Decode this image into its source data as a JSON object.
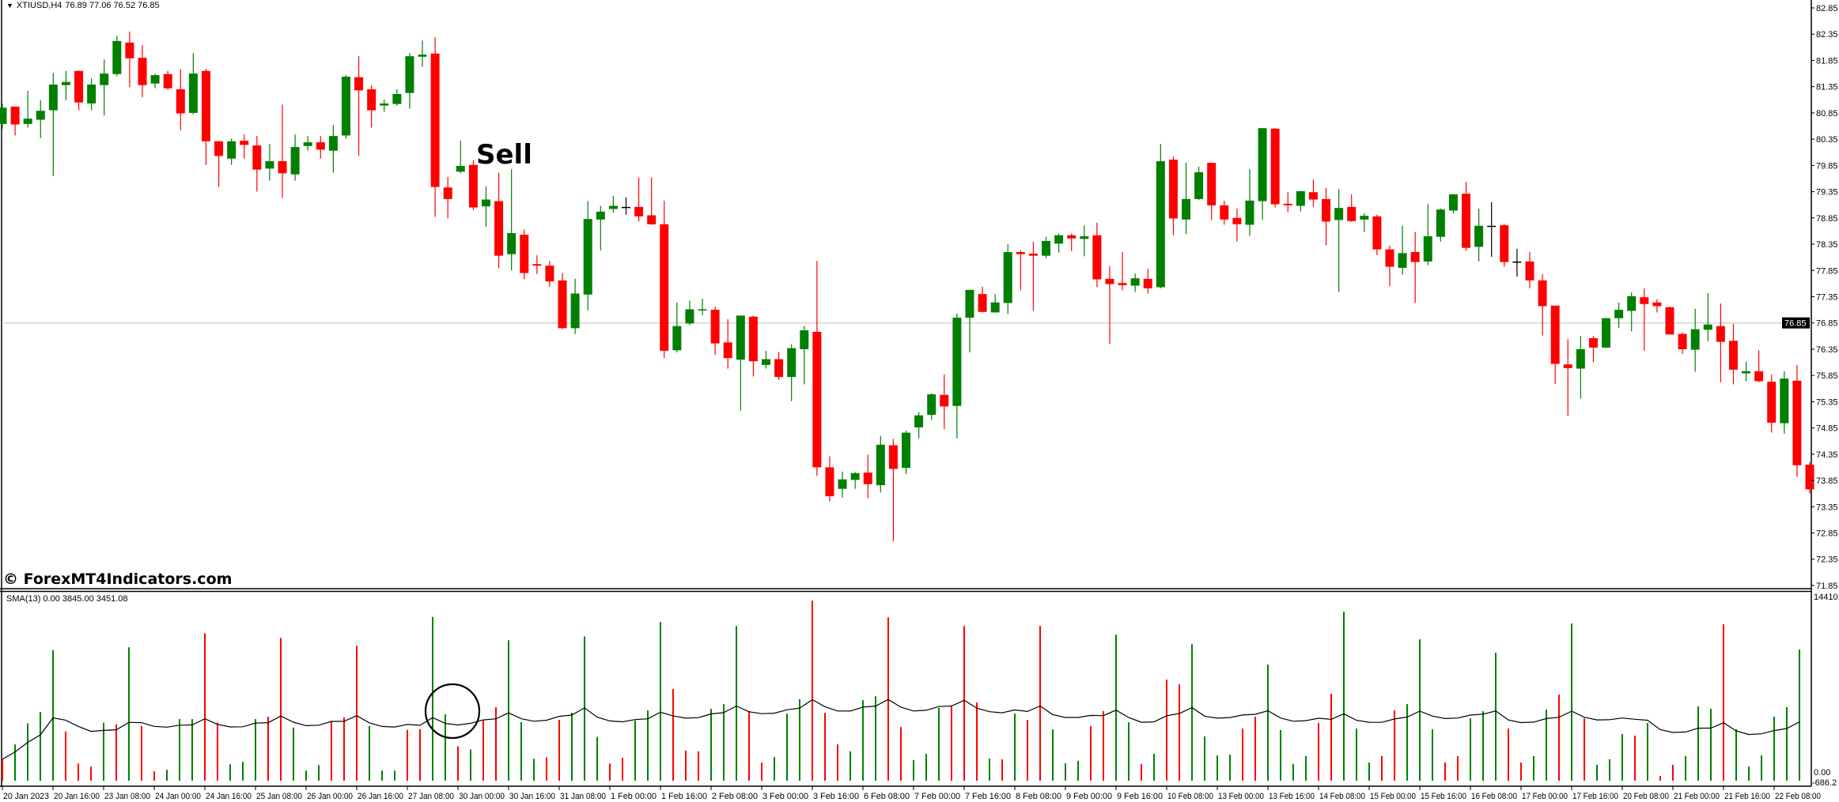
{
  "header": {
    "dropdown_icon": "triangle-down-icon",
    "symbol_timeframe": "XTIUSD,H4",
    "ohlc_text": "76.89 77.06 76.52 76.85"
  },
  "watermark": "© ForexMT4Indicators.com",
  "annotations": {
    "sell_label": "Sell",
    "circle_marker": "circle-highlight"
  },
  "indicator": {
    "label": "SMA(13) 0.00 3845.00 3451.08",
    "max_label": "14410.",
    "zero_label": "0.00",
    "min_label": "-686.2"
  },
  "colors": {
    "bull": "#008000",
    "bear": "#ff0000",
    "doji": "#000000",
    "bid_line": "#c0c0c0",
    "sma": "#000000"
  },
  "chart_data": [
    {
      "type": "candlestick",
      "symbol": "XTIUSD",
      "timeframe": "H4",
      "bid": 76.85,
      "bid_label": "76.85",
      "ylim": [
        71.85,
        82.85
      ],
      "y_tick_labels": [
        "82.85",
        "82.35",
        "81.85",
        "81.35",
        "80.85",
        "80.35",
        "79.85",
        "79.35",
        "78.85",
        "78.35",
        "77.85",
        "77.35",
        "76.85",
        "76.35",
        "75.85",
        "75.35",
        "74.85",
        "74.35",
        "73.85",
        "73.35",
        "72.85",
        "72.35",
        "71.85"
      ],
      "x_tick_labels": [
        "20 Jan 2023",
        "20 Jan 16:00",
        "23 Jan 08:00",
        "24 Jan 00:00",
        "24 Jan 16:00",
        "25 Jan 08:00",
        "26 Jan 00:00",
        "26 Jan 16:00",
        "27 Jan 08:00",
        "30 Jan 00:00",
        "30 Jan 16:00",
        "31 Jan 08:00",
        "1 Feb 00:00",
        "1 Feb 16:00",
        "2 Feb 08:00",
        "3 Feb 00:00",
        "3 Feb 16:00",
        "6 Feb 08:00",
        "7 Feb 00:00",
        "7 Feb 16:00",
        "8 Feb 08:00",
        "9 Feb 00:00",
        "9 Feb 16:00",
        "10 Feb 08:00",
        "13 Feb 00:00",
        "13 Feb 16:00",
        "14 Feb 08:00",
        "15 Feb 00:00",
        "15 Feb 16:00",
        "16 Feb 08:00",
        "17 Feb 00:00",
        "17 Feb 16:00",
        "20 Feb 08:00",
        "21 Feb 00:00",
        "21 Feb 16:00",
        "22 Feb 08:00"
      ],
      "ohlc": [
        [
          80.64,
          81.03,
          80.55,
          80.95
        ],
        [
          80.97,
          80.97,
          80.42,
          80.63
        ],
        [
          80.64,
          81.27,
          80.57,
          80.74
        ],
        [
          80.72,
          81.09,
          80.37,
          80.89
        ],
        [
          80.9,
          81.61,
          79.65,
          81.39
        ],
        [
          81.38,
          81.65,
          81.09,
          81.44
        ],
        [
          81.65,
          81.66,
          80.9,
          81.05
        ],
        [
          81.03,
          81.51,
          80.9,
          81.39
        ],
        [
          81.38,
          81.87,
          80.8,
          81.6
        ],
        [
          81.59,
          82.32,
          81.55,
          82.22
        ],
        [
          82.19,
          82.4,
          81.34,
          81.89
        ],
        [
          81.9,
          82.14,
          81.15,
          81.38
        ],
        [
          81.41,
          81.6,
          81.32,
          81.57
        ],
        [
          81.59,
          81.65,
          81.29,
          81.32
        ],
        [
          81.3,
          81.68,
          80.52,
          80.84
        ],
        [
          80.85,
          81.99,
          80.82,
          81.6
        ],
        [
          81.65,
          81.69,
          79.86,
          80.31
        ],
        [
          80.31,
          80.31,
          79.44,
          80.03
        ],
        [
          79.98,
          80.36,
          79.86,
          80.31
        ],
        [
          80.32,
          80.44,
          79.98,
          80.24
        ],
        [
          80.23,
          80.41,
          79.35,
          79.77
        ],
        [
          79.79,
          80.26,
          79.56,
          79.93
        ],
        [
          79.93,
          81.01,
          79.23,
          79.7
        ],
        [
          79.68,
          80.44,
          79.56,
          80.2
        ],
        [
          80.22,
          80.41,
          80.13,
          80.29
        ],
        [
          80.29,
          80.41,
          79.98,
          80.15
        ],
        [
          80.13,
          80.62,
          79.71,
          80.41
        ],
        [
          80.42,
          81.57,
          80.36,
          81.54
        ],
        [
          81.53,
          81.93,
          80.03,
          81.28
        ],
        [
          81.3,
          81.38,
          80.57,
          80.9
        ],
        [
          80.99,
          81.1,
          80.87,
          81.03
        ],
        [
          81.02,
          81.3,
          80.99,
          81.21
        ],
        [
          81.23,
          81.99,
          80.93,
          81.93
        ],
        [
          81.92,
          82.23,
          81.73,
          81.96
        ],
        [
          81.98,
          82.29,
          78.87,
          79.44
        ],
        [
          79.43,
          79.63,
          78.84,
          79.21
        ],
        [
          79.73,
          80.32,
          79.7,
          79.84
        ],
        [
          79.86,
          79.95,
          79.0,
          79.05
        ],
        [
          79.07,
          79.45,
          78.68,
          79.2
        ],
        [
          79.17,
          79.71,
          77.89,
          78.13
        ],
        [
          78.16,
          79.78,
          77.85,
          78.56
        ],
        [
          78.53,
          78.63,
          77.68,
          77.8
        ],
        [
          77.97,
          78.14,
          77.78,
          77.94
        ],
        [
          77.94,
          78.03,
          77.54,
          77.64
        ],
        [
          77.66,
          77.8,
          76.73,
          76.75
        ],
        [
          76.75,
          77.69,
          76.64,
          77.41
        ],
        [
          77.39,
          79.17,
          77.09,
          78.83
        ],
        [
          78.82,
          79.08,
          78.23,
          78.97
        ],
        [
          79.02,
          79.27,
          78.95,
          79.08
        ],
        [
          79.06,
          79.24,
          78.91,
          79.06
        ],
        [
          79.06,
          79.62,
          78.78,
          78.88
        ],
        [
          78.9,
          79.62,
          78.72,
          78.73
        ],
        [
          78.73,
          79.18,
          76.18,
          76.32
        ],
        [
          76.33,
          77.24,
          76.29,
          76.79
        ],
        [
          76.84,
          77.27,
          76.81,
          77.11
        ],
        [
          77.09,
          77.31,
          77.0,
          77.11
        ],
        [
          77.1,
          77.16,
          76.24,
          76.46
        ],
        [
          76.48,
          76.92,
          75.98,
          76.18
        ],
        [
          76.15,
          76.99,
          75.18,
          76.99
        ],
        [
          76.97,
          76.99,
          75.83,
          76.12
        ],
        [
          76.05,
          76.32,
          75.98,
          76.16
        ],
        [
          76.16,
          76.3,
          75.76,
          75.82
        ],
        [
          75.82,
          76.44,
          75.36,
          76.37
        ],
        [
          76.35,
          76.79,
          75.68,
          76.71
        ],
        [
          76.68,
          78.03,
          73.94,
          74.1
        ],
        [
          74.1,
          74.31,
          73.45,
          73.55
        ],
        [
          73.69,
          74.02,
          73.52,
          73.87
        ],
        [
          73.86,
          74.01,
          73.69,
          73.99
        ],
        [
          74.0,
          74.34,
          73.51,
          73.78
        ],
        [
          73.76,
          74.7,
          73.62,
          74.53
        ],
        [
          74.52,
          74.64,
          72.69,
          74.07
        ],
        [
          74.09,
          74.8,
          73.97,
          74.76
        ],
        [
          74.86,
          75.15,
          74.65,
          75.09
        ],
        [
          75.1,
          75.51,
          75.0,
          75.49
        ],
        [
          75.48,
          75.87,
          74.83,
          75.26
        ],
        [
          75.27,
          77.03,
          74.65,
          76.95
        ],
        [
          76.95,
          77.48,
          76.29,
          77.48
        ],
        [
          77.4,
          77.54,
          77.05,
          77.06
        ],
        [
          77.05,
          77.4,
          77.05,
          77.24
        ],
        [
          77.23,
          78.35,
          77.02,
          78.2
        ],
        [
          78.2,
          78.23,
          77.47,
          78.16
        ],
        [
          78.17,
          78.4,
          77.08,
          78.13
        ],
        [
          78.13,
          78.49,
          78.08,
          78.41
        ],
        [
          78.36,
          78.55,
          78.19,
          78.52
        ],
        [
          78.52,
          78.55,
          78.22,
          78.46
        ],
        [
          78.45,
          78.71,
          78.12,
          78.5
        ],
        [
          78.52,
          78.76,
          77.53,
          77.68
        ],
        [
          77.69,
          77.93,
          76.45,
          77.59
        ],
        [
          77.61,
          78.2,
          77.47,
          77.57
        ],
        [
          77.56,
          77.79,
          77.44,
          77.7
        ],
        [
          77.69,
          77.88,
          77.41,
          77.51
        ],
        [
          77.53,
          80.26,
          77.51,
          79.93
        ],
        [
          79.96,
          80.02,
          78.52,
          78.84
        ],
        [
          78.82,
          79.9,
          78.54,
          79.21
        ],
        [
          79.21,
          79.83,
          79.19,
          79.72
        ],
        [
          79.9,
          79.9,
          78.81,
          79.09
        ],
        [
          79.09,
          79.18,
          78.72,
          78.82
        ],
        [
          78.85,
          79.03,
          78.4,
          78.73
        ],
        [
          78.72,
          79.78,
          78.51,
          79.18
        ],
        [
          79.17,
          80.56,
          78.81,
          80.56
        ],
        [
          80.55,
          80.56,
          79.05,
          79.11
        ],
        [
          79.12,
          79.34,
          78.96,
          79.09
        ],
        [
          79.08,
          79.36,
          78.97,
          79.36
        ],
        [
          79.34,
          79.58,
          79.06,
          79.2
        ],
        [
          79.21,
          79.42,
          78.33,
          78.78
        ],
        [
          78.81,
          79.4,
          77.44,
          79.04
        ],
        [
          79.06,
          79.3,
          78.78,
          78.79
        ],
        [
          78.82,
          78.94,
          78.58,
          78.89
        ],
        [
          78.88,
          78.91,
          78.14,
          78.25
        ],
        [
          78.25,
          78.32,
          77.55,
          77.92
        ],
        [
          77.9,
          78.7,
          77.77,
          78.18
        ],
        [
          78.2,
          78.58,
          77.23,
          78.01
        ],
        [
          78.02,
          79.12,
          77.95,
          78.5
        ],
        [
          78.49,
          79.03,
          78.4,
          79.01
        ],
        [
          78.99,
          79.3,
          78.93,
          79.3
        ],
        [
          79.31,
          79.54,
          78.22,
          78.28
        ],
        [
          78.3,
          79.03,
          78.02,
          78.7
        ],
        [
          78.7,
          79.15,
          78.11,
          78.7
        ],
        [
          78.71,
          78.73,
          77.92,
          78.01
        ],
        [
          78.02,
          78.26,
          77.73,
          78.02
        ],
        [
          78.02,
          78.2,
          77.51,
          77.66
        ],
        [
          77.66,
          77.78,
          76.61,
          77.17
        ],
        [
          77.18,
          77.18,
          75.69,
          76.07
        ],
        [
          76.06,
          76.54,
          75.08,
          75.99
        ],
        [
          75.98,
          76.6,
          75.41,
          76.35
        ],
        [
          76.56,
          76.6,
          76.1,
          76.38
        ],
        [
          76.38,
          76.95,
          76.37,
          76.94
        ],
        [
          76.94,
          77.24,
          76.75,
          77.1
        ],
        [
          77.08,
          77.43,
          76.69,
          77.36
        ],
        [
          77.34,
          77.51,
          76.32,
          77.21
        ],
        [
          77.24,
          77.3,
          77.05,
          77.17
        ],
        [
          77.15,
          77.16,
          76.63,
          76.63
        ],
        [
          76.64,
          76.67,
          76.26,
          76.35
        ],
        [
          76.34,
          77.12,
          75.92,
          76.73
        ],
        [
          76.72,
          77.42,
          76.5,
          76.82
        ],
        [
          76.79,
          77.22,
          75.72,
          76.49
        ],
        [
          76.51,
          76.83,
          75.68,
          75.96
        ],
        [
          75.89,
          76.11,
          75.74,
          75.93
        ],
        [
          75.93,
          76.33,
          75.72,
          75.74
        ],
        [
          75.73,
          75.87,
          74.76,
          74.95
        ],
        [
          74.94,
          75.93,
          74.74,
          75.79
        ],
        [
          75.75,
          76.05,
          73.92,
          74.14
        ],
        [
          74.15,
          74.2,
          73.6,
          73.68
        ]
      ]
    },
    {
      "type": "bar",
      "indicator": "SMA(13)",
      "sma_period": 13,
      "ylim": [
        -686.2,
        14410
      ],
      "values": [
        1670,
        2830,
        4480,
        5370,
        10220,
        3850,
        1340,
        1100,
        4540,
        4400,
        10440,
        4270,
        730,
        850,
        4820,
        4820,
        11540,
        4540,
        1280,
        1470,
        4820,
        5010,
        11170,
        4150,
        790,
        1220,
        4640,
        4950,
        10560,
        4270,
        790,
        790,
        3970,
        4030,
        12820,
        5190,
        2690,
        2440,
        4700,
        5740,
        10990,
        4580,
        1710,
        1830,
        4760,
        5310,
        11290,
        3420,
        1340,
        1790,
        4700,
        5500,
        12420,
        7170,
        2350,
        2290,
        5620,
        5990,
        12110,
        5440,
        1420,
        1850,
        5250,
        6370,
        14090,
        5310,
        2840,
        2290,
        6300,
        6610,
        12790,
        4200,
        1610,
        2100,
        5690,
        5810,
        12110,
        6120,
        1730,
        1670,
        5250,
        4760,
        12110,
        4020,
        1360,
        1550,
        4260,
        5440,
        11430,
        4570,
        1300,
        2100,
        7910,
        7540,
        10690,
        3460,
        1980,
        2040,
        4080,
        5010,
        9080,
        3960,
        1300,
        1920,
        4510,
        6800,
        13230,
        4080,
        1420,
        1920,
        5500,
        5990,
        11060,
        4020,
        1420,
        1920,
        4880,
        5440,
        10010,
        4080,
        1420,
        1920,
        5560,
        6740,
        12300,
        4880,
        1240,
        1670,
        3650,
        3520,
        4510,
        370,
        1240,
        1920,
        5810,
        5620,
        12240,
        4020,
        1110,
        1980,
        5010,
        5750,
        10260,
        4200
      ],
      "directions": "rgggg rrrgrgrrgggrrgggrrgggrrrgggrrggrgrrgggrrgggrrggg rrrgggrrgggrrrgggrrgggrrrgrgrrgggrrggrgrrggggrrggggrrgggrrgggrrgggrrggrgrgggrgrrgggr"
    }
  ]
}
